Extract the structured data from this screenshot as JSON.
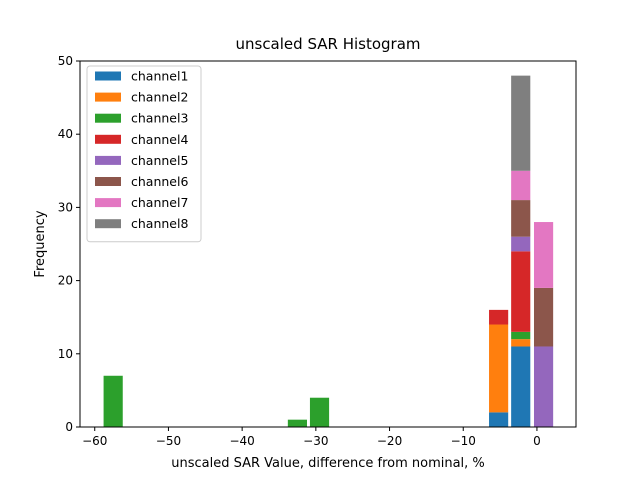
{
  "chart_data": {
    "type": "bar",
    "stacked": true,
    "title": "unscaled SAR Histogram",
    "xlabel": "unscaled SAR Value, difference from nominal, %",
    "ylabel": "Frequency",
    "xlim": [
      -62,
      5.3
    ],
    "ylim": [
      0,
      50
    ],
    "xticks": [
      -60,
      -50,
      -40,
      -30,
      -20,
      -10,
      0
    ],
    "yticks": [
      0,
      10,
      20,
      30,
      40,
      50
    ],
    "bin_width": 2.6,
    "grid": false,
    "legend_position": "top-left",
    "series": [
      {
        "name": "channel1",
        "color": "#1f77b4",
        "bars": [
          {
            "x": -5.2,
            "y": 2
          },
          {
            "x": -2.2,
            "y": 11
          }
        ]
      },
      {
        "name": "channel2",
        "color": "#ff7f0e",
        "bars": [
          {
            "x": -5.2,
            "y": 12
          },
          {
            "x": -2.2,
            "y": 1
          }
        ]
      },
      {
        "name": "channel3",
        "color": "#2ca02c",
        "bars": [
          {
            "x": -57.5,
            "y": 7
          },
          {
            "x": -32.5,
            "y": 1
          },
          {
            "x": -29.5,
            "y": 4
          },
          {
            "x": -2.2,
            "y": 1
          }
        ]
      },
      {
        "name": "channel4",
        "color": "#d62728",
        "bars": [
          {
            "x": -5.2,
            "y": 2
          },
          {
            "x": -2.2,
            "y": 11
          }
        ]
      },
      {
        "name": "channel5",
        "color": "#9467bd",
        "bars": [
          {
            "x": -2.2,
            "y": 2
          },
          {
            "x": 0.9,
            "y": 11
          }
        ]
      },
      {
        "name": "channel6",
        "color": "#8c564b",
        "bars": [
          {
            "x": -2.2,
            "y": 5
          },
          {
            "x": 0.9,
            "y": 8
          }
        ]
      },
      {
        "name": "channel7",
        "color": "#e377c2",
        "bars": [
          {
            "x": -2.2,
            "y": 4
          },
          {
            "x": 0.9,
            "y": 9
          }
        ]
      },
      {
        "name": "channel8",
        "color": "#7f7f7f",
        "bars": [
          {
            "x": -2.2,
            "y": 13
          }
        ]
      }
    ]
  }
}
